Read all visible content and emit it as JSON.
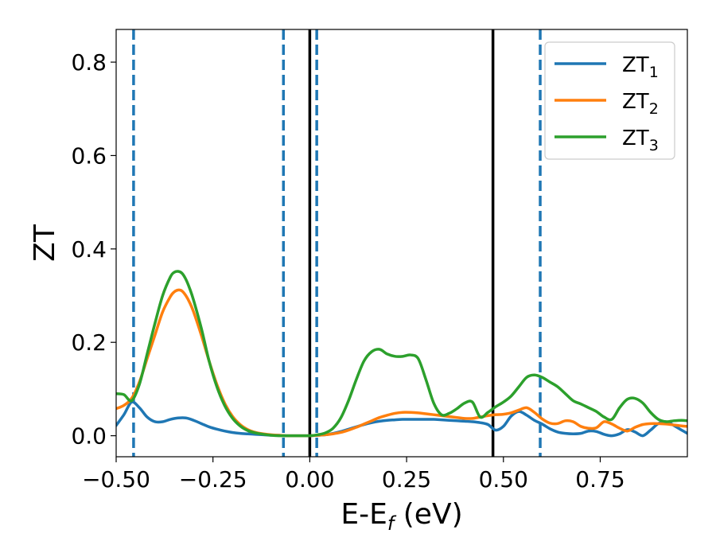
{
  "chart_data": {
    "type": "line",
    "xlabel": "E-E",
    "xlabel_sub": "f",
    "xlabel_unit": " (eV)",
    "ylabel": "ZT",
    "xlim": [
      -0.5,
      0.975
    ],
    "ylim": [
      -0.045,
      0.87
    ],
    "xticks": [
      -0.5,
      -0.25,
      0.0,
      0.25,
      0.5,
      0.75
    ],
    "xtick_labels": [
      "−0.50",
      "−0.25",
      "0.00",
      "0.25",
      "0.50",
      "0.75"
    ],
    "yticks": [
      0.0,
      0.2,
      0.4,
      0.6,
      0.8
    ],
    "ytick_labels": [
      "0.0",
      "0.2",
      "0.4",
      "0.6",
      "0.8"
    ],
    "grid": false,
    "legend_position": "top-right",
    "vlines_dashed": {
      "color": "#1f77b4",
      "x": [
        -0.455,
        -0.068,
        0.018,
        0.595
      ]
    },
    "vlines_solid": {
      "color": "#000000",
      "x": [
        0.0,
        0.473
      ]
    },
    "series": [
      {
        "name": "ZT",
        "name_sub": "1",
        "color": "#1f77b4",
        "x": [
          -0.5,
          -0.48,
          -0.46,
          -0.44,
          -0.42,
          -0.4,
          -0.38,
          -0.36,
          -0.34,
          -0.32,
          -0.3,
          -0.28,
          -0.26,
          -0.24,
          -0.22,
          -0.2,
          -0.18,
          -0.16,
          -0.14,
          -0.12,
          -0.1,
          -0.08,
          -0.06,
          -0.04,
          -0.02,
          0.0,
          0.02,
          0.04,
          0.06,
          0.08,
          0.1,
          0.12,
          0.14,
          0.16,
          0.18,
          0.2,
          0.22,
          0.24,
          0.26,
          0.28,
          0.3,
          0.32,
          0.34,
          0.36,
          0.38,
          0.4,
          0.42,
          0.44,
          0.46,
          0.48,
          0.5,
          0.52,
          0.54,
          0.56,
          0.58,
          0.6,
          0.62,
          0.64,
          0.66,
          0.68,
          0.7,
          0.72,
          0.74,
          0.76,
          0.78,
          0.8,
          0.82,
          0.84,
          0.86,
          0.88,
          0.9,
          0.92,
          0.94,
          0.96,
          0.975
        ],
        "y": [
          0.022,
          0.045,
          0.072,
          0.06,
          0.04,
          0.03,
          0.03,
          0.035,
          0.038,
          0.038,
          0.033,
          0.026,
          0.019,
          0.014,
          0.01,
          0.007,
          0.005,
          0.004,
          0.003,
          0.002,
          0.001,
          0.001,
          0.0,
          0.0,
          0.0,
          0.0,
          0.001,
          0.002,
          0.005,
          0.009,
          0.014,
          0.019,
          0.024,
          0.028,
          0.031,
          0.033,
          0.034,
          0.035,
          0.035,
          0.035,
          0.035,
          0.035,
          0.034,
          0.033,
          0.032,
          0.031,
          0.03,
          0.028,
          0.024,
          0.012,
          0.02,
          0.042,
          0.052,
          0.044,
          0.033,
          0.025,
          0.015,
          0.008,
          0.005,
          0.004,
          0.005,
          0.01,
          0.009,
          0.003,
          0.0,
          0.004,
          0.013,
          0.008,
          0.0,
          0.012,
          0.026,
          0.03,
          0.022,
          0.012,
          0.005
        ]
      },
      {
        "name": "ZT",
        "name_sub": "2",
        "color": "#ff7f0e",
        "x": [
          -0.5,
          -0.48,
          -0.46,
          -0.44,
          -0.42,
          -0.4,
          -0.38,
          -0.36,
          -0.35,
          -0.34,
          -0.33,
          -0.32,
          -0.31,
          -0.3,
          -0.28,
          -0.26,
          -0.24,
          -0.22,
          -0.2,
          -0.18,
          -0.16,
          -0.14,
          -0.12,
          -0.1,
          -0.08,
          -0.06,
          -0.04,
          -0.02,
          0.0,
          0.02,
          0.04,
          0.06,
          0.08,
          0.1,
          0.12,
          0.14,
          0.16,
          0.18,
          0.2,
          0.22,
          0.24,
          0.26,
          0.28,
          0.3,
          0.32,
          0.34,
          0.36,
          0.38,
          0.4,
          0.42,
          0.44,
          0.46,
          0.48,
          0.5,
          0.52,
          0.54,
          0.56,
          0.58,
          0.6,
          0.62,
          0.64,
          0.66,
          0.68,
          0.7,
          0.72,
          0.74,
          0.76,
          0.78,
          0.8,
          0.82,
          0.84,
          0.86,
          0.88,
          0.9,
          0.92,
          0.94,
          0.96,
          0.975
        ],
        "y": [
          0.058,
          0.065,
          0.08,
          0.115,
          0.165,
          0.215,
          0.265,
          0.298,
          0.308,
          0.312,
          0.31,
          0.3,
          0.285,
          0.265,
          0.215,
          0.16,
          0.11,
          0.07,
          0.042,
          0.024,
          0.013,
          0.007,
          0.004,
          0.002,
          0.001,
          0.0,
          0.0,
          0.0,
          0.0,
          0.001,
          0.002,
          0.004,
          0.007,
          0.012,
          0.018,
          0.025,
          0.032,
          0.039,
          0.044,
          0.048,
          0.05,
          0.05,
          0.049,
          0.047,
          0.045,
          0.043,
          0.041,
          0.039,
          0.037,
          0.037,
          0.04,
          0.043,
          0.045,
          0.046,
          0.049,
          0.055,
          0.06,
          0.05,
          0.036,
          0.027,
          0.026,
          0.032,
          0.03,
          0.02,
          0.016,
          0.017,
          0.03,
          0.025,
          0.016,
          0.01,
          0.018,
          0.024,
          0.026,
          0.026,
          0.025,
          0.023,
          0.021,
          0.02
        ]
      },
      {
        "name": "ZT",
        "name_sub": "3",
        "color": "#2ca02c",
        "x": [
          -0.5,
          -0.48,
          -0.46,
          -0.44,
          -0.42,
          -0.4,
          -0.38,
          -0.36,
          -0.35,
          -0.34,
          -0.33,
          -0.32,
          -0.31,
          -0.3,
          -0.28,
          -0.26,
          -0.24,
          -0.22,
          -0.2,
          -0.18,
          -0.16,
          -0.14,
          -0.12,
          -0.1,
          -0.08,
          -0.06,
          -0.04,
          -0.02,
          0.0,
          0.02,
          0.04,
          0.06,
          0.08,
          0.1,
          0.12,
          0.14,
          0.16,
          0.18,
          0.2,
          0.22,
          0.24,
          0.26,
          0.28,
          0.3,
          0.32,
          0.34,
          0.36,
          0.38,
          0.4,
          0.42,
          0.44,
          0.46,
          0.48,
          0.5,
          0.52,
          0.54,
          0.56,
          0.58,
          0.6,
          0.62,
          0.64,
          0.66,
          0.68,
          0.7,
          0.72,
          0.74,
          0.76,
          0.78,
          0.8,
          0.82,
          0.84,
          0.86,
          0.88,
          0.9,
          0.92,
          0.94,
          0.96,
          0.975
        ],
        "y": [
          0.09,
          0.088,
          0.075,
          0.11,
          0.175,
          0.24,
          0.3,
          0.34,
          0.35,
          0.352,
          0.348,
          0.335,
          0.315,
          0.29,
          0.23,
          0.16,
          0.105,
          0.065,
          0.038,
          0.021,
          0.011,
          0.006,
          0.003,
          0.001,
          0.0,
          0.0,
          0.0,
          0.0,
          0.0,
          0.002,
          0.006,
          0.016,
          0.038,
          0.075,
          0.12,
          0.16,
          0.18,
          0.185,
          0.175,
          0.17,
          0.17,
          0.173,
          0.165,
          0.12,
          0.07,
          0.045,
          0.048,
          0.058,
          0.07,
          0.072,
          0.04,
          0.05,
          0.062,
          0.072,
          0.085,
          0.105,
          0.125,
          0.13,
          0.125,
          0.115,
          0.105,
          0.09,
          0.075,
          0.068,
          0.06,
          0.052,
          0.04,
          0.035,
          0.06,
          0.078,
          0.08,
          0.07,
          0.05,
          0.035,
          0.03,
          0.032,
          0.033,
          0.032
        ]
      }
    ]
  }
}
